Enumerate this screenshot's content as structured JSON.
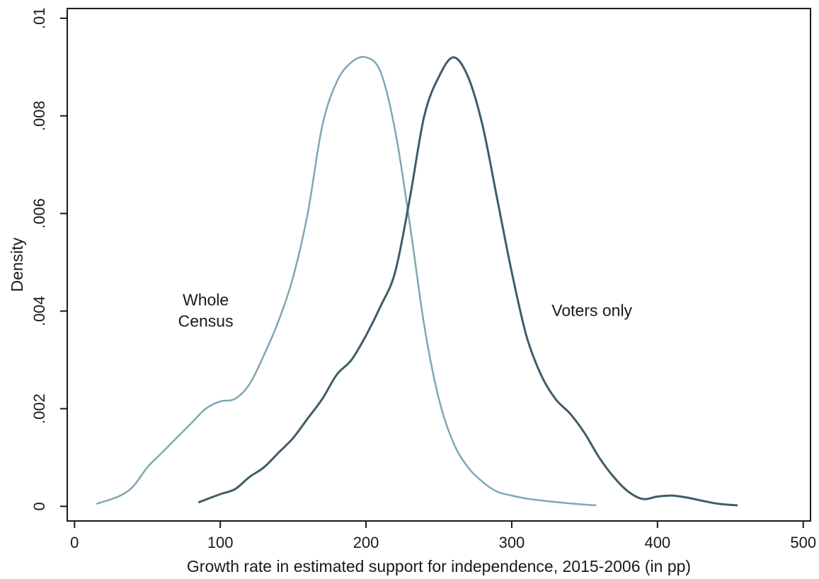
{
  "chart_data": {
    "type": "line",
    "title": "",
    "xlabel": "Growth rate in estimated support for independence, 2015-2006 (in pp)",
    "ylabel": "Density",
    "xlim": [
      -5,
      505
    ],
    "ylim": [
      -0.0003,
      0.0102
    ],
    "x_ticks": [
      0,
      100,
      200,
      300,
      400,
      500
    ],
    "x_tick_labels": [
      "0",
      "100",
      "200",
      "300",
      "400",
      "500"
    ],
    "y_ticks": [
      0,
      0.002,
      0.004,
      0.006,
      0.008,
      0.01
    ],
    "y_tick_labels": [
      "0",
      ".002",
      ".004",
      ".006",
      ".008",
      ".01"
    ],
    "grid": false,
    "legend": "none",
    "series": [
      {
        "name": "Whole Census",
        "color": "#7fa7b4",
        "x": [
          15,
          30,
          40,
          50,
          60,
          70,
          80,
          90,
          100,
          110,
          120,
          130,
          140,
          150,
          160,
          170,
          180,
          190,
          200,
          210,
          220,
          230,
          240,
          250,
          260,
          270,
          280,
          290,
          300,
          310,
          320,
          340,
          358
        ],
        "y": [
          5e-05,
          0.0002,
          0.0004,
          0.0008,
          0.0011,
          0.0014,
          0.0017,
          0.002,
          0.00215,
          0.0022,
          0.0025,
          0.0031,
          0.0038,
          0.0047,
          0.006,
          0.0078,
          0.0087,
          0.0091,
          0.0092,
          0.0089,
          0.0077,
          0.0058,
          0.0037,
          0.0022,
          0.0013,
          0.0008,
          0.0005,
          0.0003,
          0.00022,
          0.00016,
          0.00012,
          6e-05,
          2e-05
        ]
      },
      {
        "name": "Voters only",
        "color": "#3f5d68",
        "x": [
          85,
          100,
          110,
          120,
          130,
          140,
          150,
          160,
          170,
          180,
          190,
          200,
          210,
          220,
          230,
          240,
          250,
          260,
          270,
          280,
          290,
          300,
          310,
          320,
          330,
          340,
          350,
          360,
          370,
          380,
          390,
          400,
          410,
          420,
          440,
          455
        ],
        "y": [
          8e-05,
          0.00025,
          0.00035,
          0.0006,
          0.0008,
          0.0011,
          0.0014,
          0.0018,
          0.0022,
          0.0027,
          0.003,
          0.0035,
          0.0041,
          0.0048,
          0.0063,
          0.008,
          0.0088,
          0.0092,
          0.0088,
          0.0078,
          0.0063,
          0.0048,
          0.0035,
          0.0027,
          0.0022,
          0.0019,
          0.0015,
          0.001,
          0.0006,
          0.0003,
          0.00015,
          0.0002,
          0.00022,
          0.00018,
          6e-05,
          2e-05
        ]
      }
    ],
    "annotations": [
      {
        "lines": [
          "Whole",
          "Census"
        ],
        "x": 90,
        "y": 0.0039
      },
      {
        "lines": [
          "Voters only"
        ],
        "x": 355,
        "y": 0.0039
      }
    ]
  }
}
